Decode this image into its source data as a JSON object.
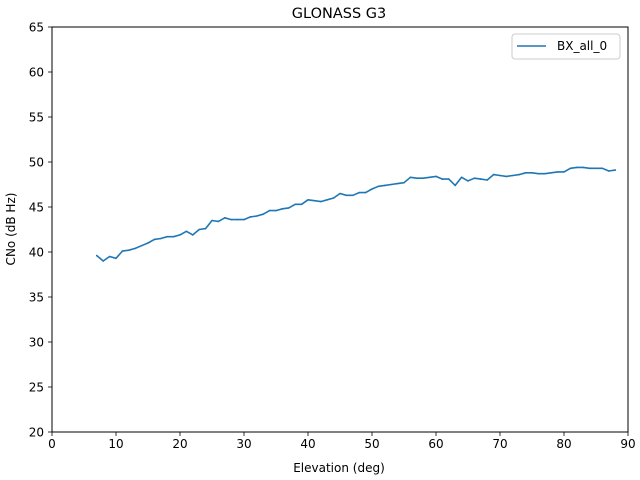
{
  "chart_data": {
    "type": "line",
    "title": "GLONASS G3",
    "xlabel": "Elevation (deg)",
    "ylabel": "CNo (dB Hz)",
    "xlim": [
      0,
      90
    ],
    "ylim": [
      20,
      65
    ],
    "xticks": [
      "0",
      "10",
      "20",
      "30",
      "40",
      "50",
      "60",
      "70",
      "80",
      "90"
    ],
    "yticks": [
      "20",
      "25",
      "30",
      "35",
      "40",
      "45",
      "50",
      "55",
      "60",
      "65"
    ],
    "grid": false,
    "legend_position": "top-right",
    "series": [
      {
        "name": "BX_all_0",
        "color": "#1f77b4",
        "x": [
          7,
          8,
          9,
          10,
          11,
          12,
          13,
          14,
          15,
          16,
          17,
          18,
          19,
          20,
          21,
          22,
          23,
          24,
          25,
          26,
          27,
          28,
          29,
          30,
          31,
          32,
          33,
          34,
          35,
          36,
          37,
          38,
          39,
          40,
          41,
          42,
          43,
          44,
          45,
          46,
          47,
          48,
          49,
          50,
          51,
          52,
          53,
          54,
          55,
          56,
          57,
          58,
          59,
          60,
          61,
          62,
          63,
          64,
          65,
          66,
          67,
          68,
          69,
          70,
          71,
          72,
          73,
          74,
          75,
          76,
          77,
          78,
          79,
          80,
          81,
          82,
          83,
          84,
          85,
          86,
          87,
          88
        ],
        "y": [
          39.6,
          39.0,
          39.5,
          39.3,
          40.1,
          40.2,
          40.4,
          40.7,
          41.0,
          41.4,
          41.5,
          41.7,
          41.7,
          41.9,
          42.3,
          41.9,
          42.5,
          42.6,
          43.5,
          43.4,
          43.8,
          43.6,
          43.6,
          43.6,
          43.9,
          44.0,
          44.2,
          44.6,
          44.6,
          44.8,
          44.9,
          45.3,
          45.3,
          45.8,
          45.7,
          45.6,
          45.8,
          46.0,
          46.5,
          46.3,
          46.3,
          46.6,
          46.6,
          47.0,
          47.3,
          47.4,
          47.5,
          47.6,
          47.7,
          48.3,
          48.2,
          48.2,
          48.3,
          48.4,
          48.1,
          48.1,
          47.4,
          48.3,
          47.9,
          48.2,
          48.1,
          48.0,
          48.6,
          48.5,
          48.4,
          48.5,
          48.6,
          48.8,
          48.8,
          48.7,
          48.7,
          48.8,
          48.9,
          48.9,
          49.3,
          49.4,
          49.4,
          49.3,
          49.3,
          49.3,
          49.0,
          49.1
        ]
      }
    ]
  }
}
